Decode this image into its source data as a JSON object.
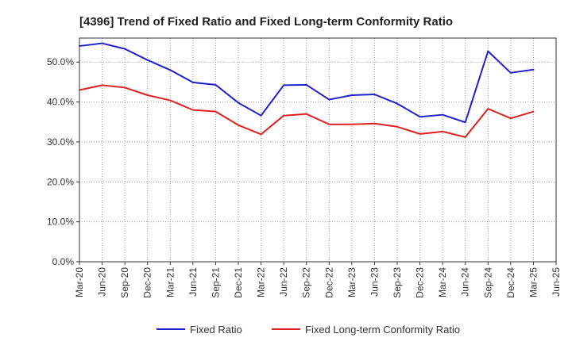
{
  "chart_data": {
    "type": "line",
    "title": "[4396]  Trend of Fixed Ratio and Fixed Long-term Conformity Ratio",
    "xlabel": "",
    "ylabel": "",
    "x": [
      "Mar-20",
      "Jun-20",
      "Sep-20",
      "Dec-20",
      "Mar-21",
      "Jun-21",
      "Sep-21",
      "Dec-21",
      "Mar-22",
      "Jun-22",
      "Sep-22",
      "Dec-22",
      "Mar-23",
      "Jun-23",
      "Sep-23",
      "Dec-23",
      "Mar-24",
      "Jun-24",
      "Sep-24",
      "Dec-24",
      "Mar-25",
      "Jun-25"
    ],
    "ylim": [
      0,
      56
    ],
    "yticks": [
      0,
      10,
      20,
      30,
      40,
      50
    ],
    "ytick_labels": [
      "0.0%",
      "10.0%",
      "20.0%",
      "30.0%",
      "40.0%",
      "50.0%"
    ],
    "grid": true,
    "legend_position": "bottom",
    "series": [
      {
        "name": "Fixed Ratio",
        "color": "#1f1fcc",
        "values": [
          54.0,
          54.7,
          53.3,
          50.5,
          48.0,
          44.9,
          44.3,
          39.8,
          36.6,
          44.2,
          44.3,
          40.6,
          41.7,
          41.9,
          39.6,
          36.3,
          36.8,
          34.9,
          52.7,
          47.3,
          48.1,
          null
        ]
      },
      {
        "name": "Fixed Long-term Conformity Ratio",
        "color": "#e01f1f",
        "values": [
          43.0,
          44.2,
          43.6,
          41.7,
          40.4,
          38.0,
          37.6,
          34.2,
          31.9,
          36.6,
          37.0,
          34.4,
          34.4,
          34.6,
          33.8,
          32.0,
          32.6,
          31.2,
          38.3,
          35.9,
          37.6,
          null
        ]
      }
    ]
  }
}
